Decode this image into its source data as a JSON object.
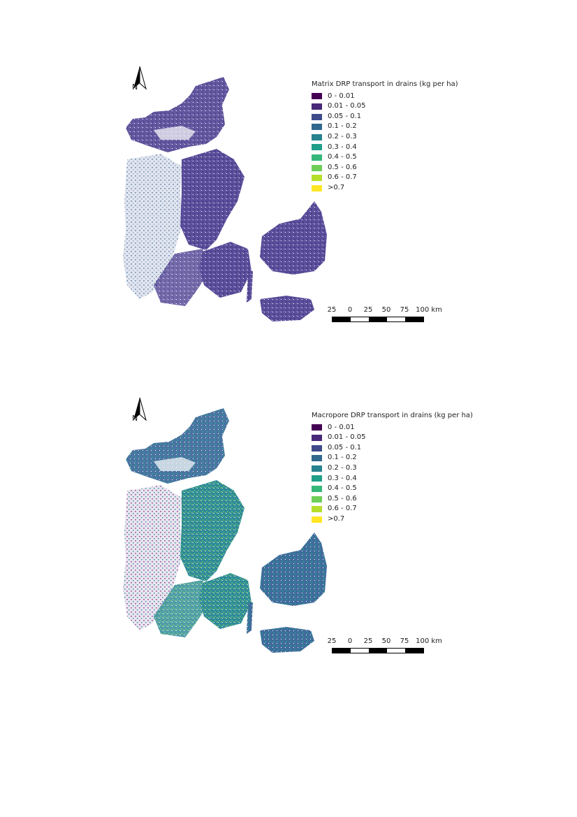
{
  "maps": [
    {
      "legend_title": "Matrix DRP transport in drains (kg per ha)",
      "dominant_colors": [
        "#5a4d99",
        "#4a3d8a",
        "#6a66b0"
      ]
    },
    {
      "legend_title": "Macropore DRP transport in drains (kg per ha)",
      "dominant_colors": [
        "#3d6e9a",
        "#2f8a9a",
        "#4fb07e"
      ]
    }
  ],
  "legend_classes": [
    {
      "label": "0 - 0.01",
      "color": "#440154"
    },
    {
      "label": "0.01 - 0.05",
      "color": "#482878"
    },
    {
      "label": "0.05 - 0.1",
      "color": "#3e4a89"
    },
    {
      "label": "0.1 - 0.2",
      "color": "#31688e"
    },
    {
      "label": "0.2 - 0.3",
      "color": "#26828e"
    },
    {
      "label": "0.3 - 0.4",
      "color": "#1f9e89"
    },
    {
      "label": "0.4 - 0.5",
      "color": "#35b779"
    },
    {
      "label": "0.5 - 0.6",
      "color": "#6ece58"
    },
    {
      "label": "0.6 - 0.7",
      "color": "#b5de2b"
    },
    {
      "label": ">0.7",
      "color": "#fde725"
    }
  ],
  "north_label": "N",
  "scale_labels": [
    "25",
    "0",
    "25",
    "50",
    "75",
    "100 km"
  ]
}
